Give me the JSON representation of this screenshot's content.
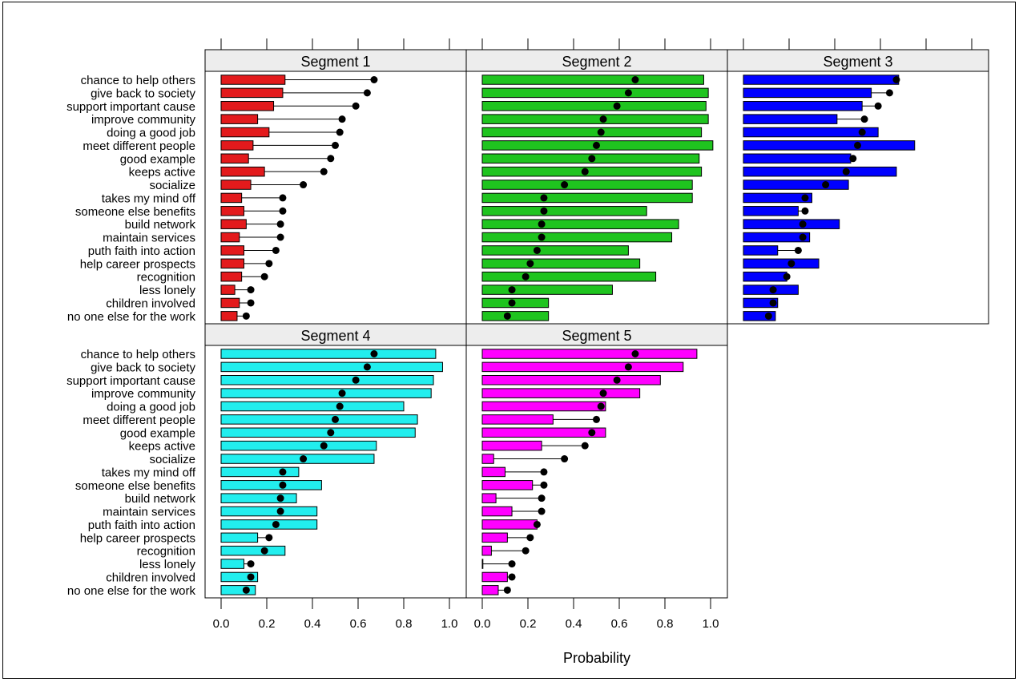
{
  "chart_data": {
    "type": "bar",
    "xlabel": "Probability",
    "xlim": [
      0,
      1.0
    ],
    "x_ticks": [
      "0.0",
      "0.2",
      "0.4",
      "0.6",
      "0.8",
      "1.0"
    ],
    "grid": false,
    "categories": [
      "chance to help others",
      "give back to society",
      "support important cause",
      "improve community",
      "doing a good job",
      "meet different people",
      "good example",
      "keeps active",
      "socialize",
      "takes my mind off",
      "someone else benefits",
      "build network",
      "maintain services",
      "puth faith into action",
      "help career prospects",
      "recognition",
      "less lonely",
      "children involved",
      "no one else for the work"
    ],
    "overall_probability": [
      0.67,
      0.64,
      0.59,
      0.53,
      0.52,
      0.5,
      0.48,
      0.45,
      0.36,
      0.27,
      0.27,
      0.26,
      0.26,
      0.24,
      0.21,
      0.19,
      0.13,
      0.13,
      0.11
    ],
    "series": [
      {
        "name": "Segment 1",
        "color": "#e31a1c",
        "values": [
          0.28,
          0.27,
          0.23,
          0.16,
          0.21,
          0.14,
          0.12,
          0.19,
          0.13,
          0.09,
          0.1,
          0.11,
          0.08,
          0.1,
          0.1,
          0.09,
          0.06,
          0.08,
          0.07
        ]
      },
      {
        "name": "Segment 2",
        "color": "#1fc41f",
        "values": [
          0.97,
          0.99,
          0.98,
          0.99,
          0.96,
          1.01,
          0.95,
          0.96,
          0.92,
          0.92,
          0.72,
          0.86,
          0.83,
          0.64,
          0.69,
          0.76,
          0.57,
          0.29,
          0.29
        ]
      },
      {
        "name": "Segment 3",
        "color": "#0000ff",
        "values": [
          0.68,
          0.56,
          0.52,
          0.41,
          0.59,
          0.75,
          0.47,
          0.67,
          0.46,
          0.3,
          0.24,
          0.42,
          0.29,
          0.15,
          0.33,
          0.19,
          0.24,
          0.15,
          0.14
        ]
      },
      {
        "name": "Segment 4",
        "color": "#22eeee",
        "values": [
          0.94,
          0.97,
          0.93,
          0.92,
          0.8,
          0.86,
          0.85,
          0.68,
          0.67,
          0.34,
          0.44,
          0.33,
          0.42,
          0.42,
          0.16,
          0.28,
          0.1,
          0.16,
          0.15
        ]
      },
      {
        "name": "Segment 5",
        "color": "#ff00ff",
        "values": [
          0.94,
          0.88,
          0.78,
          0.69,
          0.54,
          0.31,
          0.54,
          0.26,
          0.05,
          0.1,
          0.22,
          0.06,
          0.13,
          0.24,
          0.11,
          0.04,
          0.0,
          0.11,
          0.07
        ]
      }
    ]
  }
}
